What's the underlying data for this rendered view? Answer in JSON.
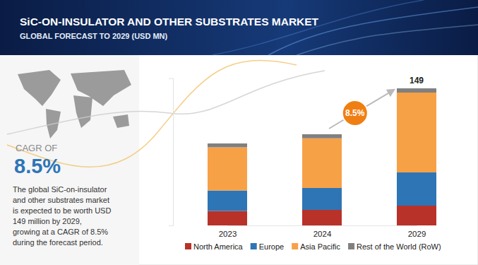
{
  "chart_data": {
    "type": "bar",
    "stacked": true,
    "title": "SiC-ON-INSULATOR AND OTHER SUBSTRATES MARKET",
    "subtitle": "GLOBAL FORECAST TO 2029 (USD MN)",
    "categories": [
      "2023",
      "2024",
      "2029"
    ],
    "series": [
      {
        "name": "North America",
        "color": "#b8322a",
        "values": [
          15.7,
          16.9,
          21.5
        ]
      },
      {
        "name": "Europe",
        "color": "#2e75b6",
        "values": [
          22.3,
          23.8,
          36.1
        ]
      },
      {
        "name": "Asia Pacific",
        "color": "#f7a147",
        "values": [
          46.9,
          54.0,
          86.8
        ]
      },
      {
        "name": "Rest of the World (RoW)",
        "color": "#808080",
        "values": [
          4.2,
          4.4,
          4.6
        ]
      }
    ],
    "ylim": [
      0,
      160
    ],
    "yticks": [],
    "tick_labels": "x",
    "grid": false,
    "legend": "bottom",
    "annotations": [
      {
        "text": "149",
        "value": 149,
        "category": "2029"
      },
      {
        "text": "8.5%"
      }
    ]
  },
  "panel": {
    "heading": "CAGR OF",
    "value": "8.5%",
    "text": [
      "The global SiC-on-insulator",
      "and other substrates market",
      "is expected to be worth USD",
      "149 million by 2029,",
      "growing at a CAGR of 8.5%",
      "during the forecast period."
    ]
  }
}
